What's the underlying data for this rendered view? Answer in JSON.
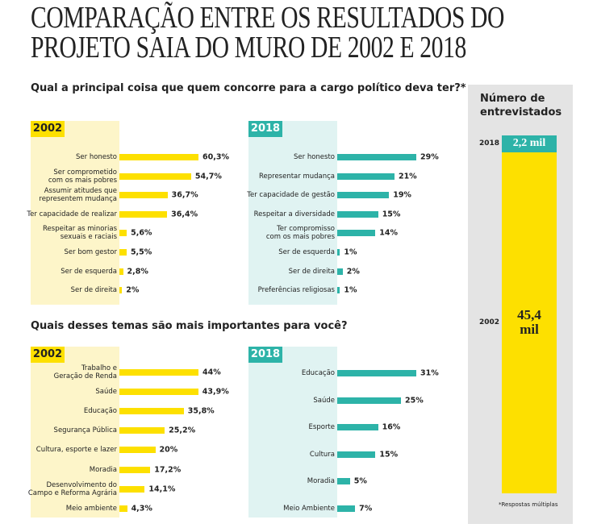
{
  "header": {
    "title": "COMPARAÇÃO ENTRE OS RESULTADOS DO\nPROJETO SAIA DO MURO DE 2002 E 2018"
  },
  "sections": [
    {
      "question": "Qual a principal coisa que quem concorre para a cargo político deva ter?*"
    },
    {
      "question": "Quais desses temas são mais importantes para você?"
    }
  ],
  "chart_data": [
    {
      "type": "hbar",
      "title": "2002",
      "color": "#fde000",
      "categories": [
        "Ser honesto",
        "Ser comprometido\ncom os mais pobres",
        "Assumir atitudes que\nrepresentem mudança",
        "Ter capacidade de realizar",
        "Respeitar as minorias\nsexuais e raciais",
        "Ser bom gestor",
        "Ser de esquerda",
        "Ser de direita"
      ],
      "values": [
        60.3,
        54.7,
        36.7,
        36.4,
        5.6,
        5.5,
        2.8,
        2
      ],
      "value_labels": [
        "60,3%",
        "54,7%",
        "36,7%",
        "36,4%",
        "5,6%",
        "5,5%",
        "2,8%",
        "2%"
      ]
    },
    {
      "type": "hbar",
      "title": "2018",
      "color": "#2db3a8",
      "categories": [
        "Ser honesto",
        "Representar mudança",
        "Ter capacidade de gestão",
        "Respeitar a diversidade",
        "Ter compromisso\ncom os mais pobres",
        "Ser de esquerda",
        "Ser de direita",
        "Preferências religiosas"
      ],
      "values": [
        29,
        21,
        19,
        15,
        14,
        1,
        2,
        1
      ],
      "value_labels": [
        "29%",
        "21%",
        "19%",
        "15%",
        "14%",
        "1%",
        "2%",
        "1%"
      ]
    },
    {
      "type": "hbar",
      "title": "2002",
      "color": "#fde000",
      "categories": [
        "Trabalho e\nGeração de Renda",
        "Saúde",
        "Educação",
        "Segurança Pública",
        "Cultura, esporte e lazer",
        "Moradia",
        "Desenvolvimento do\nCampo e Reforma Agrária",
        "Meio ambiente"
      ],
      "values": [
        44,
        43.9,
        35.8,
        25.2,
        20,
        17.2,
        14.1,
        4.3
      ],
      "value_labels": [
        "44%",
        "43,9%",
        "35,8%",
        "25,2%",
        "20%",
        "17,2%",
        "14,1%",
        "4,3%"
      ]
    },
    {
      "type": "hbar",
      "title": "2018",
      "color": "#2db3a8",
      "categories": [
        "Educação",
        "Saúde",
        "Esporte",
        "Cultura",
        "Moradia",
        "Meio Ambiente"
      ],
      "values": [
        31,
        25,
        16,
        15,
        5,
        7
      ],
      "value_labels": [
        "31%",
        "25%",
        "16%",
        "15%",
        "5%",
        "7%"
      ]
    },
    {
      "type": "stacked-column",
      "title": "Número de entrevistados",
      "categories": [
        "2018",
        "2002"
      ],
      "colors": [
        "#2db3a8",
        "#fde000"
      ],
      "values": [
        2.2,
        45.4
      ],
      "value_labels": [
        "2,2 mil",
        "45,4\nmil"
      ]
    }
  ],
  "footnote": "*Respostas múltiplas"
}
